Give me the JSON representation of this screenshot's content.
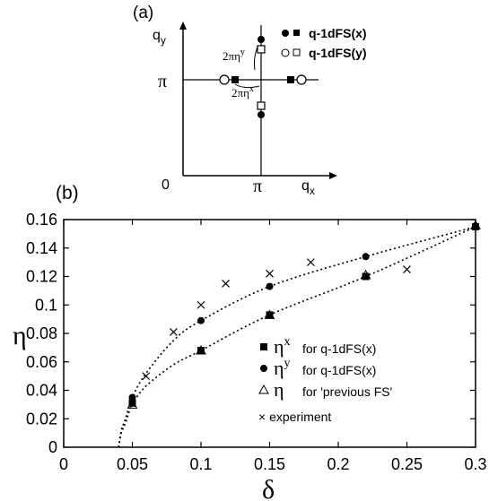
{
  "chart_data": [
    {
      "type": "diagram",
      "panel_label": "(a)",
      "xlabel": "q",
      "xlabel_sub": "x",
      "ylabel": "q",
      "ylabel_sub": "y",
      "x_ticks": [
        "0",
        "π"
      ],
      "y_ticks": [
        "π"
      ],
      "annotations": [
        {
          "text": "2πη",
          "sup": "y"
        },
        {
          "text": "2πη",
          "sup": "x"
        }
      ],
      "legend": [
        {
          "label": "q-1dFS(x)",
          "markers": [
            "filled-circle",
            "filled-square"
          ]
        },
        {
          "label": "q-1dFS(y)",
          "markers": [
            "open-circle",
            "open-square"
          ]
        }
      ]
    },
    {
      "type": "scatter",
      "panel_label": "(b)",
      "xlabel": "δ",
      "ylabel": "η",
      "xlim": [
        0,
        0.3
      ],
      "ylim": [
        0,
        0.16
      ],
      "x_ticks": [
        0,
        0.05,
        0.1,
        0.15,
        0.2,
        0.25,
        0.3
      ],
      "x_tick_labels": [
        "0",
        "0.05",
        "0.1",
        "0.15",
        "0.2",
        "0.25",
        "0.3"
      ],
      "y_ticks": [
        0,
        0.02,
        0.04,
        0.06,
        0.08,
        0.1,
        0.12,
        0.14,
        0.16
      ],
      "y_tick_labels": [
        "0",
        "0.02",
        "0.04",
        "0.06",
        "0.08",
        "0.1",
        "0.12",
        "0.14",
        "0.16"
      ],
      "series": [
        {
          "symbol": "η",
          "sup": "x",
          "label": "for q-1dFS(x)",
          "marker": "filled-square",
          "x": [
            0.05,
            0.1,
            0.15,
            0.22,
            0.3
          ],
          "y": [
            0.031,
            0.068,
            0.093,
            0.12,
            0.155
          ]
        },
        {
          "symbol": "η",
          "sup": "y",
          "label": "for q-1dFS(x)",
          "marker": "filled-circle",
          "x": [
            0.05,
            0.1,
            0.15,
            0.22,
            0.3
          ],
          "y": [
            0.035,
            0.089,
            0.113,
            0.134,
            0.155
          ]
        },
        {
          "symbol": "η",
          "sup": "",
          "label": "for 'previous FS'",
          "marker": "open-triangle",
          "x": [
            0.05,
            0.1,
            0.15,
            0.22,
            0.3
          ],
          "y": [
            0.03,
            0.068,
            0.093,
            0.121,
            0.156
          ]
        },
        {
          "symbol": "",
          "sup": "",
          "label": "× experiment",
          "marker": "cross",
          "x": [
            0.06,
            0.08,
            0.1,
            0.118,
            0.15,
            0.18,
            0.25
          ],
          "y": [
            0.05,
            0.081,
            0.1,
            0.115,
            0.122,
            0.13,
            0.125
          ]
        }
      ],
      "fit_curves": [
        {
          "style": "dotted",
          "x": [
            0.04,
            0.042,
            0.045,
            0.05,
            0.06,
            0.08,
            0.1,
            0.15,
            0.22,
            0.3
          ],
          "y": [
            0.0,
            0.012,
            0.02,
            0.035,
            0.052,
            0.075,
            0.089,
            0.113,
            0.134,
            0.155
          ]
        },
        {
          "style": "dotted",
          "x": [
            0.04,
            0.042,
            0.045,
            0.05,
            0.06,
            0.08,
            0.1,
            0.15,
            0.22,
            0.3
          ],
          "y": [
            0.0,
            0.01,
            0.017,
            0.03,
            0.043,
            0.058,
            0.068,
            0.093,
            0.12,
            0.155
          ]
        }
      ],
      "grid": false
    }
  ]
}
